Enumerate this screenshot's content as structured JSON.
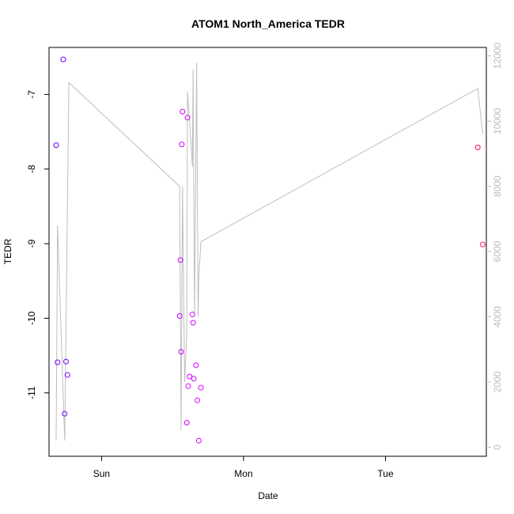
{
  "chart_data": {
    "type": "scatter",
    "title": "ATOM1 North_America TEDR",
    "xlabel": "Date",
    "ylabel": "TEDR",
    "x_ticks": [
      "Sun",
      "Mon",
      "Tue"
    ],
    "y_ticks": [
      "-7",
      "-8",
      "-9",
      "-10",
      "-11"
    ],
    "y2_ticks": [
      "0",
      "2000",
      "4000",
      "6000",
      "8000",
      "10000",
      "12000"
    ],
    "xlim": [
      -0.37,
      2.71
    ],
    "ylim": [
      -11.85,
      -6.37
    ],
    "y2lim": [
      -280,
      12260
    ],
    "point_color": "#8b00ff",
    "line_color": "#bebebe",
    "right_axis_color": "#bbbbbb",
    "points": [
      {
        "x": -0.32,
        "y": -7.68,
        "color": "#6a00ff"
      },
      {
        "x": -0.27,
        "y": -6.53,
        "color": "#6e00ff"
      },
      {
        "x": -0.31,
        "y": -10.59,
        "color": "#6a00ff"
      },
      {
        "x": -0.25,
        "y": -10.58,
        "color": "#6e00ff"
      },
      {
        "x": -0.24,
        "y": -10.76,
        "color": "#6e00ff"
      },
      {
        "x": -0.26,
        "y": -11.28,
        "color": "#6e00ff"
      },
      {
        "x": 0.55,
        "y": -9.97,
        "color": "#c800ff"
      },
      {
        "x": 0.555,
        "y": -9.22,
        "color": "#c800ff"
      },
      {
        "x": 0.56,
        "y": -10.45,
        "color": "#cc00ff"
      },
      {
        "x": 0.565,
        "y": -7.67,
        "color": "#cc00ff"
      },
      {
        "x": 0.57,
        "y": -7.23,
        "color": "#cc00ff"
      },
      {
        "x": 0.605,
        "y": -7.31,
        "color": "#d000ff"
      },
      {
        "x": 0.6,
        "y": -11.4,
        "color": "#d000ff"
      },
      {
        "x": 0.61,
        "y": -10.91,
        "color": "#d000ff"
      },
      {
        "x": 0.62,
        "y": -10.78,
        "color": "#d400ff"
      },
      {
        "x": 0.64,
        "y": -9.95,
        "color": "#d800ff"
      },
      {
        "x": 0.645,
        "y": -10.06,
        "color": "#d800ff"
      },
      {
        "x": 0.65,
        "y": -10.81,
        "color": "#d800ff"
      },
      {
        "x": 0.665,
        "y": -10.63,
        "color": "#dc00ff"
      },
      {
        "x": 0.675,
        "y": -11.1,
        "color": "#dc00ff"
      },
      {
        "x": 0.685,
        "y": -11.64,
        "color": "#dc00ff"
      },
      {
        "x": 0.7,
        "y": -10.93,
        "color": "#e000ff"
      },
      {
        "x": 2.65,
        "y": -7.71,
        "color": "#ff0066"
      },
      {
        "x": 2.685,
        "y": -9.01,
        "color": "#ff1a66"
      }
    ],
    "line_series": {
      "axis": "right",
      "x": [
        -0.32,
        -0.31,
        -0.26,
        -0.23,
        0.55,
        0.56,
        0.57,
        0.575,
        0.585,
        0.6,
        0.605,
        0.625,
        0.64,
        0.645,
        0.655,
        0.67,
        0.68,
        0.685,
        0.7,
        2.65,
        2.685
      ],
      "y": [
        200,
        6800,
        200,
        11180,
        8000,
        500,
        8000,
        6000,
        2000,
        3500,
        10900,
        9700,
        8600,
        11600,
        4000,
        11800,
        4000,
        5200,
        6300,
        11000,
        9600
      ]
    }
  }
}
